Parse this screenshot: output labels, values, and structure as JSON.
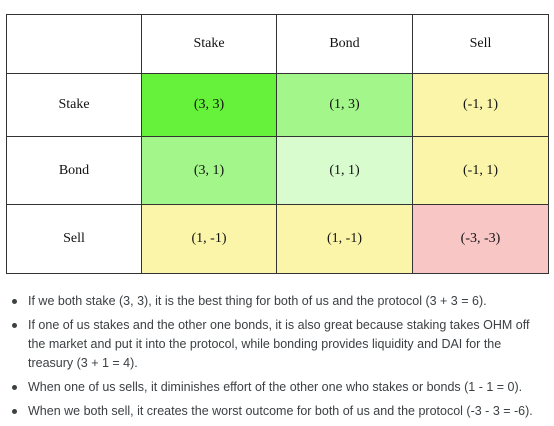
{
  "table": {
    "header": [
      "",
      "Stake",
      "Bond",
      "Sell"
    ],
    "rows": [
      {
        "label": "Stake",
        "cells": [
          "(3, 3)",
          "(1, 3)",
          "(-1, 1)"
        ],
        "colors": [
          "#66f23a",
          "#a3f78a",
          "#fbf5a9"
        ]
      },
      {
        "label": "Bond",
        "cells": [
          "(3, 1)",
          "(1, 1)",
          "(-1, 1)"
        ],
        "colors": [
          "#a3f78a",
          "#d8fcce",
          "#fbf5a9"
        ]
      },
      {
        "label": "Sell",
        "cells": [
          "(1, -1)",
          "(1, -1)",
          "(-3, -3)"
        ],
        "colors": [
          "#fbf5a9",
          "#fbf5a9",
          "#f9c6c6"
        ]
      }
    ]
  },
  "notes": [
    "If we both stake (3, 3), it is the best thing for both of us and the protocol (3 + 3 = 6).",
    "If one of us stakes and the other one bonds, it is also great because staking takes OHM off the market and put it into the protocol, while bonding provides liquidity and DAI for the treasury (3 + 1 = 4).",
    "When one of us sells, it diminishes effort of the other one who stakes or bonds (1 - 1 = 0).",
    "When we both sell, it creates the worst outcome for both of us and the protocol (-3 - 3 = -6)."
  ]
}
